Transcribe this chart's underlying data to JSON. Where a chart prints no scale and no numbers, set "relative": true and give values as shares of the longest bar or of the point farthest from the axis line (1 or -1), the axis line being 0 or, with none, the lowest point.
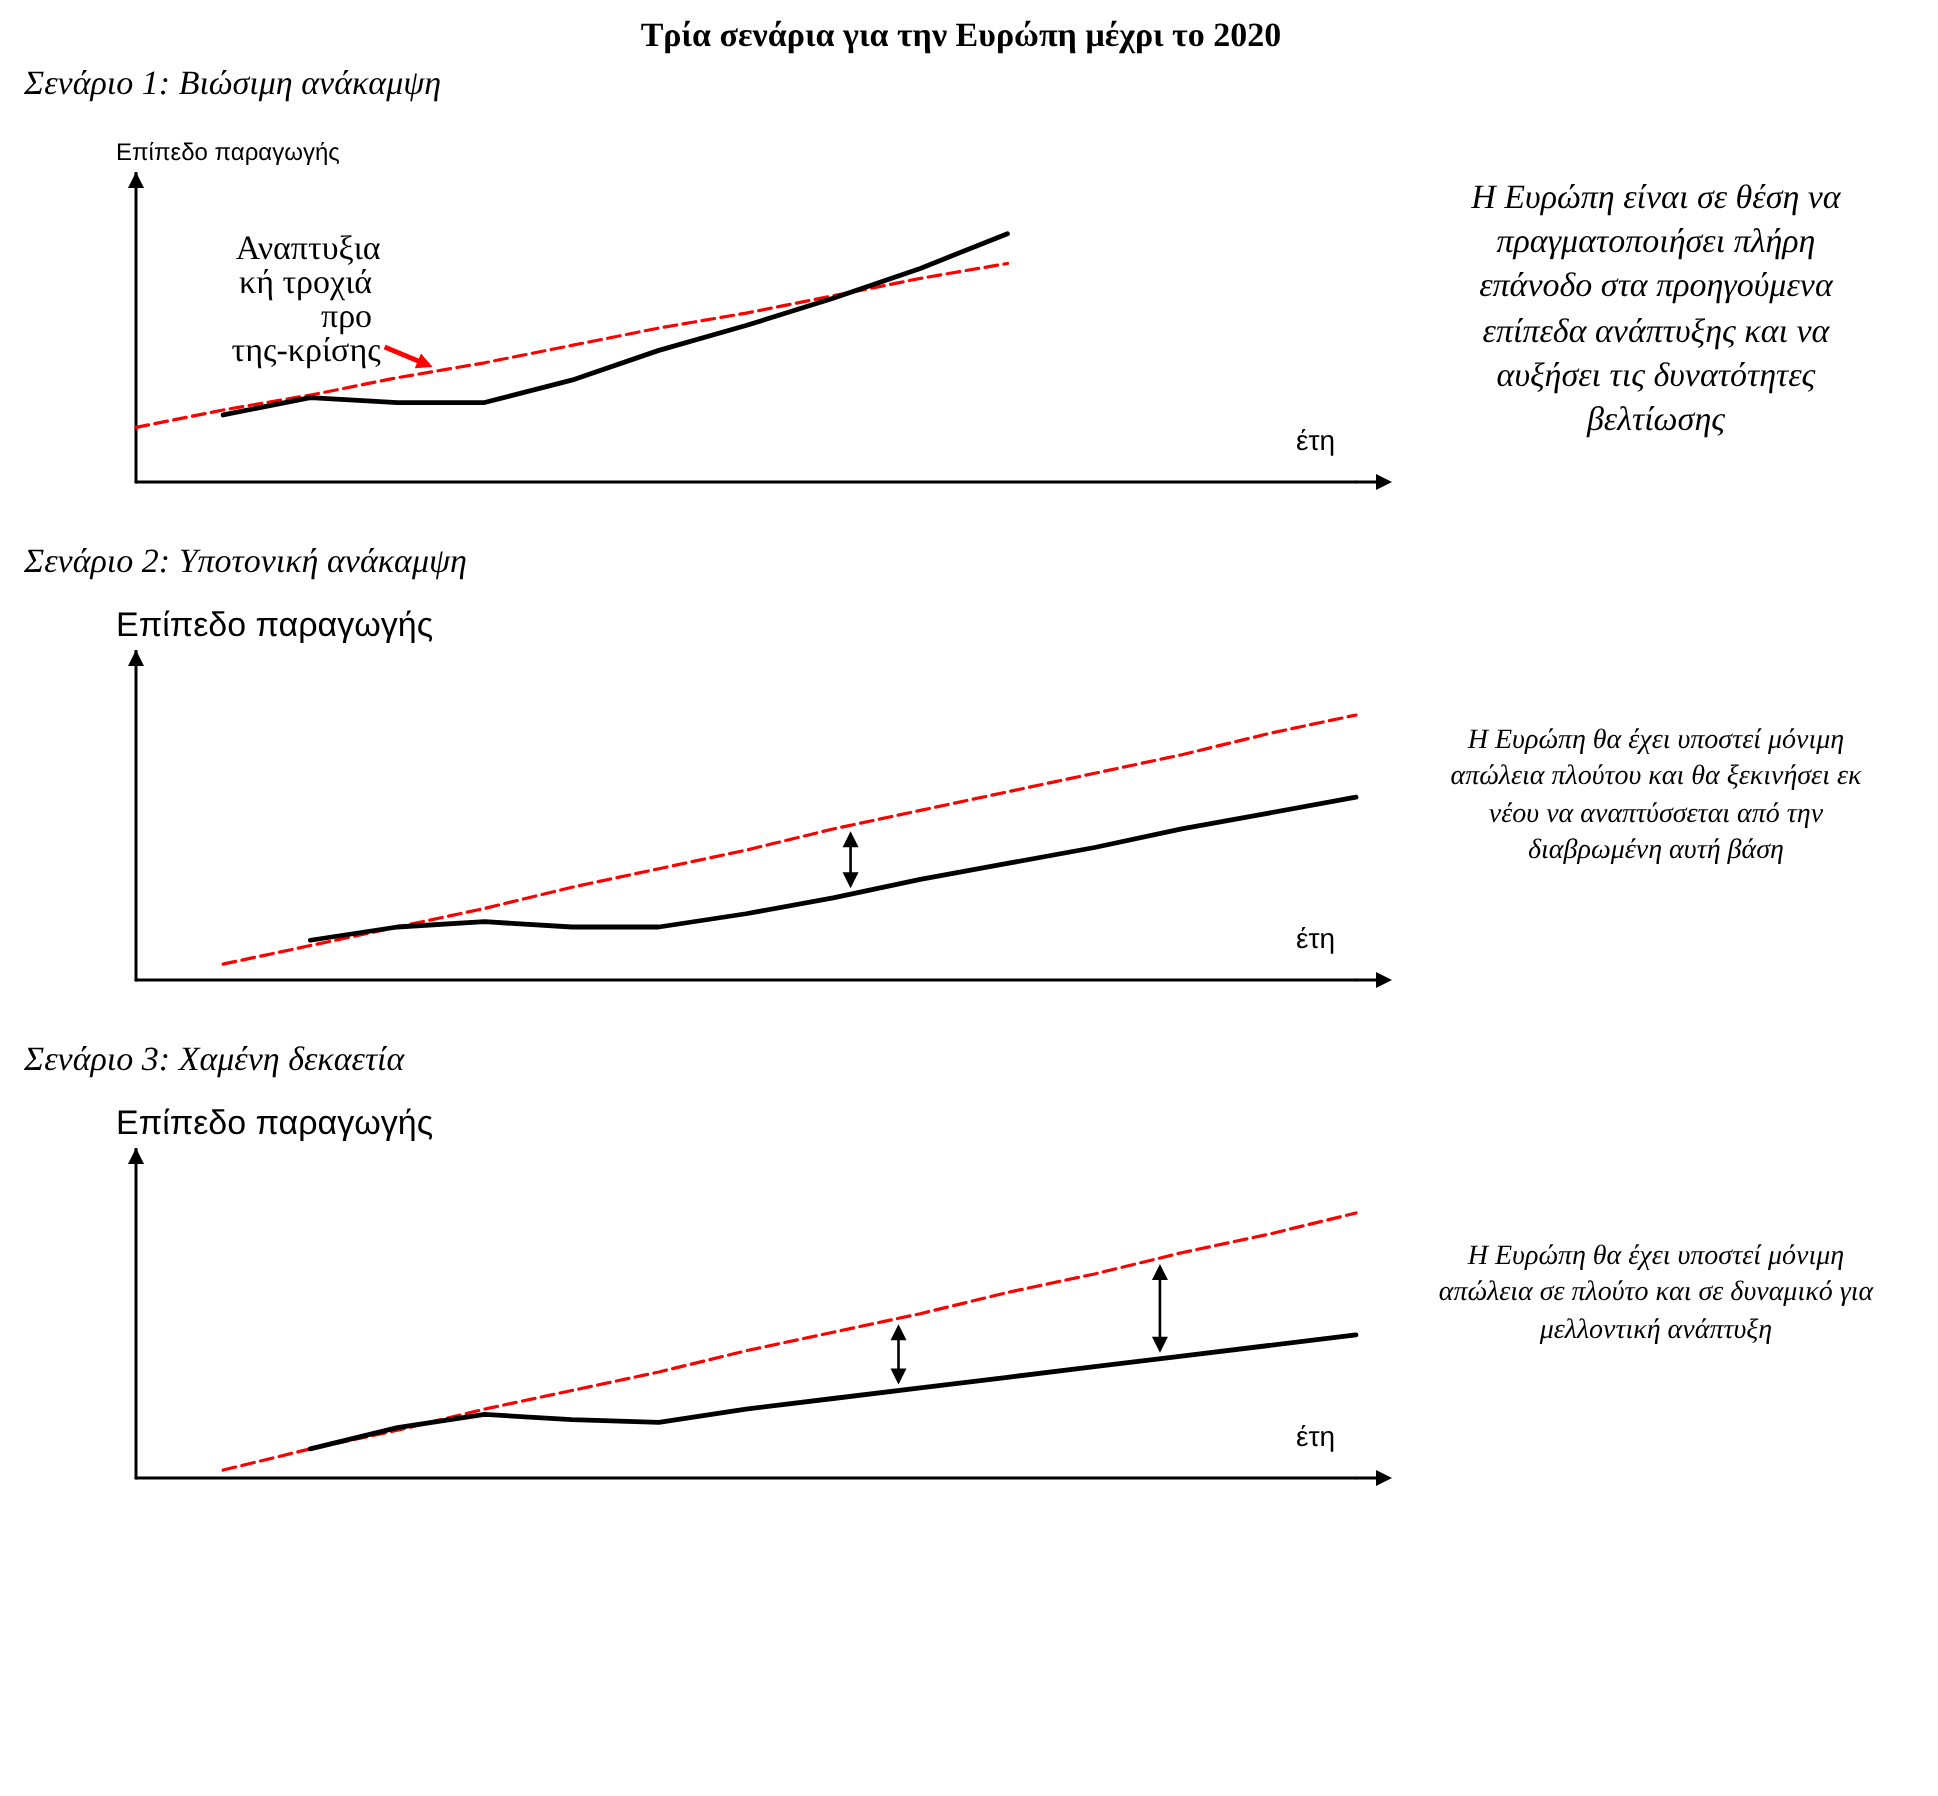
{
  "chart_data": [
    {
      "type": "line",
      "title": "Τρία σενάρια για την Ευρώπη μέχρι το 2020",
      "subtitle": "Σενάριο 1: Βιώσιμη ανάκαμψη",
      "xlabel": "έτη",
      "ylabel": "Επίπεδο παραγωγής",
      "relative": true,
      "marker": "none",
      "categories": [
        null,
        null,
        null,
        null,
        null,
        null,
        null,
        null,
        null,
        null,
        null,
        null,
        null,
        null,
        null
      ],
      "series": [
        {
          "color": "#ff0000",
          "line_style": "dashed",
          "values": [
            0.22,
            0.29,
            0.35,
            0.42,
            0.48,
            0.55,
            0.62,
            0.68,
            0.75,
            0.82,
            0.88,
            null,
            null,
            null,
            null
          ]
        },
        {
          "color": "#000000",
          "line_style": "solid",
          "values": [
            null,
            0.27,
            0.34,
            0.32,
            0.32,
            0.41,
            0.53,
            0.63,
            0.74,
            0.86,
            1.0,
            null,
            null,
            null,
            null
          ]
        }
      ],
      "annotations": [
        "Αναπτυξιακή τροχιά προ της-κρίσης",
        "Η Ευρώπη είναι σε θέση να πραγματοποιήσει πλήρη επάνοδο στα προηγούμενα επίπεδα ανάπτυξης και να αυξήσει τις δυνατότητες βελτίωσης"
      ]
    },
    {
      "type": "line",
      "title": "Σενάριο 2: Υποτονική ανάκαμψη",
      "xlabel": "έτη",
      "ylabel": "Επίπεδο παραγωγής",
      "relative": true,
      "marker": "none",
      "categories": [
        null,
        null,
        null,
        null,
        null,
        null,
        null,
        null,
        null,
        null,
        null,
        null,
        null,
        null,
        null
      ],
      "series": [
        {
          "color": "#ff0000",
          "line_style": "dashed",
          "values": [
            null,
            0.06,
            0.13,
            0.2,
            0.27,
            0.35,
            0.42,
            0.49,
            0.57,
            0.64,
            0.71,
            0.78,
            0.85,
            0.93,
            1.0
          ]
        },
        {
          "color": "#000000",
          "line_style": "solid",
          "values": [
            null,
            null,
            0.15,
            0.2,
            0.22,
            0.2,
            0.2,
            0.25,
            0.31,
            0.38,
            0.44,
            0.5,
            0.57,
            0.63,
            0.69
          ]
        }
      ],
      "annotations": [
        "Η Ευρώπη θα έχει υποστεί μόνιμη απώλεια πλούτου και θα ξεκινήσει εκ νέου να αναπτύσσεται από την διαβρωμένη αυτή βάση"
      ]
    },
    {
      "type": "line",
      "title": "Σενάριο 3: Χαμένη δεκαετία",
      "xlabel": "έτη",
      "ylabel": "Επίπεδο παραγωγής",
      "relative": true,
      "marker": "none",
      "categories": [
        null,
        null,
        null,
        null,
        null,
        null,
        null,
        null,
        null,
        null,
        null,
        null,
        null,
        null,
        null
      ],
      "series": [
        {
          "color": "#ff0000",
          "line_style": "dashed",
          "values": [
            null,
            0.03,
            0.11,
            0.18,
            0.26,
            0.33,
            0.4,
            0.48,
            0.55,
            0.62,
            0.7,
            0.77,
            0.85,
            0.92,
            1.0
          ]
        },
        {
          "color": "#000000",
          "line_style": "solid",
          "values": [
            null,
            null,
            0.11,
            0.19,
            0.24,
            0.22,
            0.21,
            0.26,
            0.3,
            0.34,
            0.38,
            0.42,
            0.46,
            0.5,
            0.54
          ]
        }
      ],
      "annotations": [
        "Η Ευρώπη θα έχει υποστεί μόνιμη απώλεια σε πλούτο και σε δυναμικό για μελλοντική ανάπτυξη"
      ]
    }
  ]
}
